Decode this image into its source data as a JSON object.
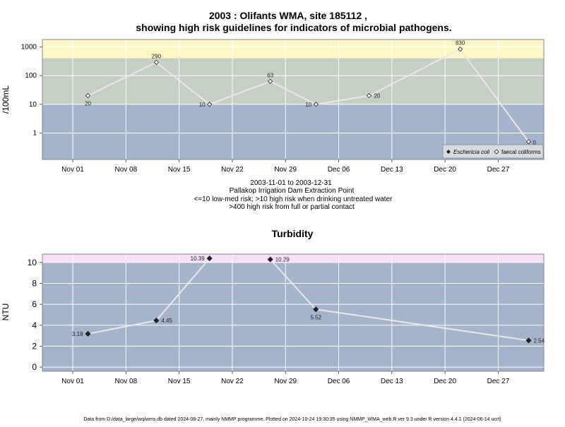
{
  "chart_data": [
    {
      "type": "line",
      "title_line1": "2003 : Olifants WMA, site 185112 ,",
      "title_line2": "showing high risk guidelines for indicators of microbial pathogens.",
      "ylabel": "/100mL",
      "yscale": "log",
      "ylim": [
        0.12,
        1800
      ],
      "yticks": [
        "1",
        "10",
        "100",
        "1000"
      ],
      "xlim": [
        "2003-10-28",
        "2004-01-02"
      ],
      "xticks": [
        "Nov 01",
        "Nov 08",
        "Nov 15",
        "Nov 22",
        "Nov 29",
        "Dec 06",
        "Dec 13",
        "Dec 20",
        "Dec 27"
      ],
      "bands": [
        {
          "from": 0.12,
          "to": 10,
          "color": "#a3b4cc"
        },
        {
          "from": 10,
          "to": 400,
          "color": "#c5cfc4"
        },
        {
          "from": 400,
          "to": 1800,
          "color": "#fdf7c5"
        }
      ],
      "series": [
        {
          "name": "faecal coliforms",
          "marker": "open-diamond",
          "dates": [
            "2003-11-03",
            "2003-11-12",
            "2003-11-19",
            "2003-11-27",
            "2003-12-03",
            "2003-12-10",
            "2003-12-22",
            "2003-12-31"
          ],
          "values": [
            20,
            290,
            10,
            63,
            10,
            20,
            830,
            0.5
          ],
          "labels": [
            "20",
            "290",
            "10",
            "63",
            "10",
            "20",
            "830",
            "0"
          ]
        }
      ],
      "legend": {
        "position": "bottom-right",
        "items": [
          {
            "label": "Eschericia coli",
            "marker": "filled-diamond",
            "italic": true
          },
          {
            "label": "faecal coliforms",
            "marker": "open-diamond",
            "italic": false
          }
        ]
      },
      "caption_lines": [
        "2003-11-01 to 2003-12-31",
        "Pallakop Irrigation Dam Extraction Point",
        "<=10 low-med risk; >10 high risk when drinking untreated water",
        ">400 high risk from full or partial contact"
      ]
    },
    {
      "type": "line",
      "title": "Turbidity",
      "ylabel": "NTU",
      "ylim": [
        -0.4,
        10.8
      ],
      "yticks": [
        0,
        2,
        4,
        6,
        8,
        10
      ],
      "xlim": [
        "2003-10-28",
        "2004-01-02"
      ],
      "xticks": [
        "Nov 01",
        "Nov 08",
        "Nov 15",
        "Nov 22",
        "Nov 29",
        "Dec 06",
        "Dec 13",
        "Dec 20",
        "Dec 27"
      ],
      "bands": [
        {
          "from": -0.4,
          "to": 10,
          "color": "#a3b4cc"
        },
        {
          "from": 10,
          "to": 10.8,
          "color": "#f9defa"
        }
      ],
      "series": [
        {
          "name": "",
          "marker": "filled-diamond",
          "dates": [
            "2003-11-03",
            "2003-11-12",
            "2003-11-19",
            "2003-11-27",
            "2003-12-03",
            "2003-12-31"
          ],
          "values": [
            3.18,
            4.45,
            10.39,
            10.29,
            5.52,
            2.54
          ],
          "labels": [
            "3.18",
            "4.45",
            "10.39",
            "10.29",
            "5.52",
            "2.54"
          ]
        }
      ]
    }
  ],
  "footer": "Data from D:/data_large/wq/wms.db dated 2024-08-27, mainly NMMP programme. Plotted on 2024-10-24 19:30:35 using NMMP_WMA_web.R ver 9.3 under R version 4.4.1 (2024-06-14 ucrt)"
}
